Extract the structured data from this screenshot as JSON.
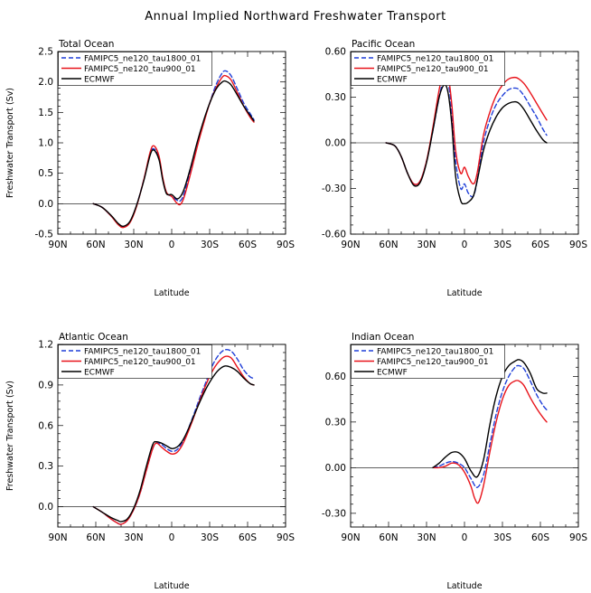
{
  "figure": {
    "title": "Annual Implied Northward Freshwater Transport"
  },
  "chart_data": [
    {
      "type": "line",
      "title": "Total Ocean",
      "xlabel": "Latitude",
      "ylabel": "Freshwater Transport (Sv)",
      "xlim": [
        -90,
        90
      ],
      "ylim": [
        -0.5,
        2.5
      ],
      "x_ticks": [
        -90,
        -60,
        -30,
        0,
        30,
        60,
        90
      ],
      "x_tick_labels": [
        "90N",
        "60N",
        "30N",
        "0",
        "30S",
        "60S",
        "90S"
      ],
      "y_ticks": [
        -0.5,
        0.0,
        0.5,
        1.0,
        1.5,
        2.0,
        2.5
      ],
      "y_tick_labels": [
        "-0.5",
        "0.0",
        "0.5",
        "1.0",
        "1.5",
        "2.0",
        "2.5"
      ],
      "legend": "top-left",
      "series": [
        {
          "name": "FAMIPC5_ne120_tau1800_01",
          "color": "#1f3fd8",
          "dash": true,
          "x": [
            -62,
            -55,
            -48,
            -42,
            -38,
            -33,
            -28,
            -22,
            -17,
            -14,
            -10,
            -7,
            -4,
            0,
            4,
            7,
            10,
            15,
            20,
            25,
            30,
            35,
            40,
            43,
            47,
            52,
            57,
            62,
            65
          ],
          "y": [
            0,
            -0.06,
            -0.2,
            -0.34,
            -0.38,
            -0.3,
            -0.05,
            0.4,
            0.82,
            0.9,
            0.75,
            0.4,
            0.18,
            0.12,
            0.06,
            0.05,
            0.18,
            0.55,
            0.95,
            1.32,
            1.65,
            1.95,
            2.15,
            2.18,
            2.1,
            1.88,
            1.65,
            1.48,
            1.38
          ]
        },
        {
          "name": "FAMIPC5_ne120_tau900_01",
          "color": "#e8141b",
          "dash": false,
          "x": [
            -62,
            -55,
            -48,
            -42,
            -38,
            -33,
            -28,
            -22,
            -17,
            -14,
            -10,
            -7,
            -4,
            0,
            4,
            7,
            10,
            15,
            20,
            25,
            30,
            35,
            40,
            43,
            47,
            52,
            57,
            62,
            65
          ],
          "y": [
            0,
            -0.06,
            -0.2,
            -0.35,
            -0.39,
            -0.31,
            -0.06,
            0.4,
            0.85,
            0.95,
            0.78,
            0.42,
            0.18,
            0.12,
            0.01,
            -0.01,
            0.12,
            0.5,
            0.92,
            1.3,
            1.65,
            1.9,
            2.08,
            2.1,
            2.03,
            1.82,
            1.6,
            1.42,
            1.34
          ]
        },
        {
          "name": "ECMWF",
          "color": "#000000",
          "dash": false,
          "x": [
            -62,
            -55,
            -48,
            -42,
            -38,
            -33,
            -28,
            -22,
            -17,
            -14,
            -10,
            -7,
            -4,
            0,
            4,
            7,
            10,
            15,
            20,
            25,
            30,
            35,
            40,
            43,
            47,
            52,
            57,
            62,
            65
          ],
          "y": [
            0,
            -0.06,
            -0.19,
            -0.33,
            -0.37,
            -0.29,
            -0.04,
            0.38,
            0.8,
            0.88,
            0.72,
            0.38,
            0.16,
            0.15,
            0.08,
            0.12,
            0.25,
            0.6,
            1.0,
            1.35,
            1.65,
            1.88,
            2.0,
            2.01,
            1.95,
            1.78,
            1.6,
            1.45,
            1.36
          ]
        }
      ]
    },
    {
      "type": "line",
      "title": "Pacific Ocean",
      "xlabel": "Latitude",
      "ylabel": "",
      "xlim": [
        -90,
        90
      ],
      "ylim": [
        -0.6,
        0.6
      ],
      "x_ticks": [
        -90,
        -60,
        -30,
        0,
        30,
        60,
        90
      ],
      "x_tick_labels": [
        "90N",
        "60N",
        "30N",
        "0",
        "30S",
        "60S",
        "90S"
      ],
      "y_ticks": [
        -0.6,
        -0.3,
        0.0,
        0.3,
        0.6
      ],
      "y_tick_labels": [
        "-0.60",
        "-0.30",
        "0.00",
        "0.30",
        "0.60"
      ],
      "legend": "top-left",
      "series": [
        {
          "name": "FAMIPC5_ne120_tau1800_01",
          "color": "#1f3fd8",
          "dash": true,
          "x": [
            -62,
            -55,
            -50,
            -45,
            -40,
            -35,
            -30,
            -25,
            -20,
            -16,
            -13,
            -10,
            -7,
            -3,
            0,
            3,
            7,
            10,
            15,
            20,
            25,
            30,
            35,
            40,
            43,
            47,
            52,
            57,
            62,
            65
          ],
          "y": [
            0,
            -0.02,
            -0.09,
            -0.2,
            -0.27,
            -0.25,
            -0.12,
            0.08,
            0.3,
            0.43,
            0.4,
            0.2,
            -0.12,
            -0.3,
            -0.27,
            -0.33,
            -0.35,
            -0.25,
            0.0,
            0.15,
            0.25,
            0.31,
            0.35,
            0.36,
            0.35,
            0.31,
            0.24,
            0.17,
            0.09,
            0.05
          ]
        },
        {
          "name": "FAMIPC5_ne120_tau900_01",
          "color": "#e8141b",
          "dash": false,
          "x": [
            -62,
            -55,
            -50,
            -45,
            -40,
            -35,
            -30,
            -25,
            -20,
            -16,
            -13,
            -10,
            -7,
            -3,
            0,
            3,
            7,
            10,
            15,
            20,
            25,
            30,
            35,
            40,
            43,
            47,
            52,
            57,
            62,
            65
          ],
          "y": [
            0,
            -0.02,
            -0.09,
            -0.2,
            -0.27,
            -0.25,
            -0.12,
            0.1,
            0.35,
            0.48,
            0.45,
            0.25,
            -0.05,
            -0.2,
            -0.16,
            -0.22,
            -0.27,
            -0.2,
            0.05,
            0.2,
            0.31,
            0.38,
            0.42,
            0.43,
            0.42,
            0.39,
            0.33,
            0.26,
            0.19,
            0.15
          ]
        },
        {
          "name": "ECMWF",
          "color": "#000000",
          "dash": false,
          "x": [
            -62,
            -55,
            -50,
            -45,
            -40,
            -35,
            -30,
            -25,
            -20,
            -16,
            -13,
            -10,
            -7,
            -3,
            0,
            3,
            7,
            10,
            15,
            20,
            25,
            30,
            35,
            40,
            43,
            47,
            52,
            57,
            62,
            65
          ],
          "y": [
            0,
            -0.02,
            -0.09,
            -0.2,
            -0.28,
            -0.26,
            -0.13,
            0.08,
            0.3,
            0.38,
            0.33,
            0.12,
            -0.22,
            -0.38,
            -0.4,
            -0.39,
            -0.35,
            -0.25,
            -0.05,
            0.08,
            0.17,
            0.23,
            0.26,
            0.27,
            0.26,
            0.22,
            0.15,
            0.08,
            0.02,
            0.0
          ]
        }
      ]
    },
    {
      "type": "line",
      "title": "Atlantic Ocean",
      "xlabel": "Latitude",
      "ylabel": "Freshwater Transport (Sv)",
      "xlim": [
        -90,
        90
      ],
      "ylim": [
        -0.15,
        1.2
      ],
      "x_ticks": [
        -90,
        -60,
        -30,
        0,
        30,
        60,
        90
      ],
      "x_tick_labels": [
        "90N",
        "60N",
        "30N",
        "0",
        "30S",
        "60S",
        "90S"
      ],
      "y_ticks": [
        0.0,
        0.3,
        0.6,
        0.9,
        1.2
      ],
      "y_tick_labels": [
        "0.0",
        "0.3",
        "0.6",
        "0.9",
        "1.2"
      ],
      "legend": "top-left",
      "series": [
        {
          "name": "FAMIPC5_ne120_tau1800_01",
          "color": "#1f3fd8",
          "dash": true,
          "x": [
            -62,
            -55,
            -48,
            -43,
            -40,
            -35,
            -30,
            -25,
            -20,
            -15,
            -12,
            -8,
            -4,
            0,
            4,
            8,
            12,
            17,
            22,
            27,
            32,
            37,
            42,
            47,
            52,
            57,
            62,
            65
          ],
          "y": [
            0,
            -0.04,
            -0.09,
            -0.12,
            -0.13,
            -0.1,
            -0.02,
            0.1,
            0.27,
            0.43,
            0.47,
            0.46,
            0.43,
            0.41,
            0.42,
            0.47,
            0.55,
            0.67,
            0.8,
            0.92,
            1.04,
            1.12,
            1.16,
            1.15,
            1.09,
            1.01,
            0.96,
            0.95
          ]
        },
        {
          "name": "FAMIPC5_ne120_tau900_01",
          "color": "#e8141b",
          "dash": false,
          "x": [
            -62,
            -55,
            -48,
            -43,
            -40,
            -35,
            -30,
            -25,
            -20,
            -15,
            -12,
            -8,
            -4,
            0,
            4,
            8,
            12,
            17,
            22,
            27,
            32,
            37,
            42,
            47,
            52,
            57,
            62,
            65
          ],
          "y": [
            0,
            -0.04,
            -0.09,
            -0.12,
            -0.13,
            -0.1,
            -0.02,
            0.1,
            0.27,
            0.43,
            0.47,
            0.44,
            0.41,
            0.39,
            0.4,
            0.45,
            0.53,
            0.65,
            0.78,
            0.9,
            1.0,
            1.07,
            1.11,
            1.1,
            1.03,
            0.96,
            0.91,
            0.9
          ]
        },
        {
          "name": "ECMWF",
          "color": "#000000",
          "dash": false,
          "x": [
            -62,
            -55,
            -48,
            -43,
            -40,
            -35,
            -30,
            -25,
            -20,
            -15,
            -12,
            -8,
            -4,
            0,
            4,
            8,
            12,
            17,
            22,
            27,
            32,
            37,
            42,
            47,
            52,
            57,
            62,
            65
          ],
          "y": [
            0,
            -0.04,
            -0.08,
            -0.1,
            -0.11,
            -0.09,
            -0.01,
            0.12,
            0.3,
            0.46,
            0.48,
            0.47,
            0.45,
            0.43,
            0.44,
            0.48,
            0.55,
            0.66,
            0.77,
            0.87,
            0.95,
            1.01,
            1.04,
            1.03,
            1.0,
            0.95,
            0.91,
            0.9
          ]
        }
      ]
    },
    {
      "type": "line",
      "title": "Indian Ocean",
      "xlabel": "Latitude",
      "ylabel": "",
      "xlim": [
        -90,
        90
      ],
      "ylim": [
        -0.39,
        0.81
      ],
      "x_ticks": [
        -90,
        -60,
        -30,
        0,
        30,
        60,
        90
      ],
      "x_tick_labels": [
        "90N",
        "60N",
        "30N",
        "0",
        "30S",
        "60S",
        "90S"
      ],
      "y_ticks": [
        -0.3,
        0.0,
        0.3,
        0.6
      ],
      "y_tick_labels": [
        "-0.30",
        "0.00",
        "0.30",
        "0.60"
      ],
      "legend": "top-left",
      "series": [
        {
          "name": "FAMIPC5_ne120_tau1800_01",
          "color": "#1f3fd8",
          "dash": true,
          "x": [
            -25,
            -20,
            -15,
            -10,
            -5,
            0,
            5,
            10,
            15,
            20,
            25,
            30,
            35,
            40,
            43,
            47,
            52,
            57,
            62,
            65
          ],
          "y": [
            0,
            0.01,
            0.03,
            0.04,
            0.03,
            0.0,
            -0.07,
            -0.13,
            -0.05,
            0.15,
            0.35,
            0.5,
            0.6,
            0.66,
            0.67,
            0.65,
            0.57,
            0.48,
            0.41,
            0.38
          ]
        },
        {
          "name": "FAMIPC5_ne120_tau900_01",
          "color": "#e8141b",
          "dash": false,
          "x": [
            -25,
            -20,
            -15,
            -10,
            -5,
            0,
            5,
            8,
            11,
            15,
            20,
            25,
            30,
            35,
            40,
            43,
            47,
            52,
            57,
            62,
            65
          ],
          "y": [
            0,
            0.0,
            0.01,
            0.03,
            0.02,
            -0.03,
            -0.12,
            -0.2,
            -0.23,
            -0.12,
            0.1,
            0.3,
            0.45,
            0.54,
            0.57,
            0.57,
            0.54,
            0.46,
            0.39,
            0.33,
            0.3
          ]
        },
        {
          "name": "ECMWF",
          "color": "#000000",
          "dash": false,
          "x": [
            -25,
            -20,
            -15,
            -10,
            -5,
            0,
            5,
            10,
            15,
            20,
            25,
            30,
            35,
            40,
            43,
            47,
            52,
            57,
            62,
            65
          ],
          "y": [
            0,
            0.03,
            0.07,
            0.1,
            0.1,
            0.06,
            -0.02,
            -0.06,
            0.05,
            0.28,
            0.47,
            0.6,
            0.67,
            0.7,
            0.71,
            0.69,
            0.62,
            0.52,
            0.49,
            0.49
          ]
        }
      ]
    }
  ]
}
